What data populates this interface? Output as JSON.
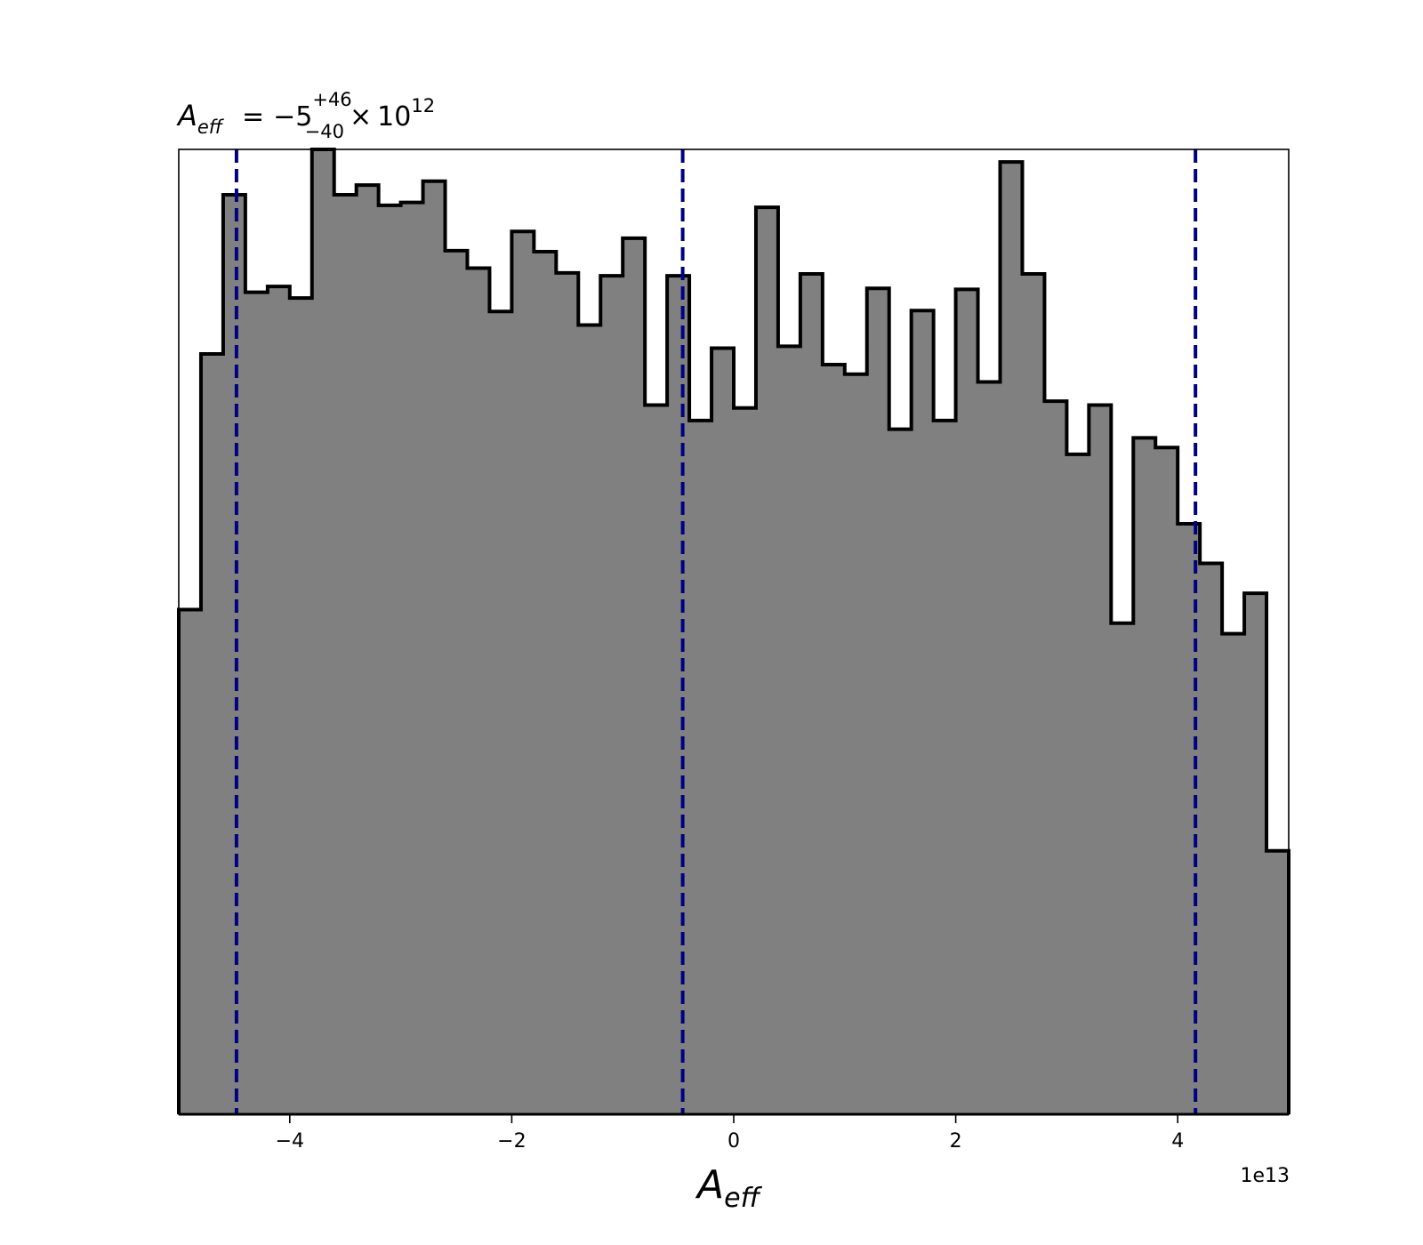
{
  "chart_data": {
    "type": "bar",
    "histogram": true,
    "title": {
      "symbol": "A",
      "symbol_subscript": "eff",
      "equals": "=",
      "value": "−5",
      "upper": "+46",
      "lower": "−40",
      "times": "×",
      "base": "10",
      "exponent": "12"
    },
    "xlabel": {
      "symbol": "A",
      "subscript": "eff"
    },
    "x_offset_text": "1e13",
    "xlim": [
      -5.0,
      5.0
    ],
    "ylim": [
      0,
      1000
    ],
    "xticks": [
      -4,
      -2,
      0,
      2,
      4
    ],
    "xtick_labels": [
      "−4",
      "−2",
      "0",
      "2",
      "4"
    ],
    "yaxis_visible": false,
    "bin_edges": [
      -5.0,
      -4.8,
      -4.6,
      -4.4,
      -4.2,
      -4.0,
      -3.8,
      -3.6,
      -3.4,
      -3.2,
      -3.0,
      -2.8,
      -2.6,
      -2.4,
      -2.2,
      -2.0,
      -1.8,
      -1.6,
      -1.4,
      -1.2,
      -1.0,
      -0.8,
      -0.6,
      -0.4,
      -0.2,
      0.0,
      0.2,
      0.4,
      0.6,
      0.8,
      1.0,
      1.2,
      1.4,
      1.6,
      1.8,
      2.0,
      2.2,
      2.4,
      2.6,
      2.8,
      3.0,
      3.2,
      3.4,
      3.6,
      3.8,
      4.0,
      4.2,
      4.4,
      4.6,
      4.8,
      5.0
    ],
    "values": [
      523,
      788,
      953,
      852,
      858,
      846,
      1000,
      953,
      963,
      942,
      945,
      967,
      895,
      877,
      832,
      915,
      894,
      872,
      818,
      869,
      908,
      735,
      869,
      719,
      794,
      732,
      940,
      796,
      871,
      777,
      767,
      856,
      710,
      833,
      719,
      855,
      759,
      987,
      871,
      739,
      684,
      735,
      509,
      701,
      691,
      612,
      571,
      498,
      540,
      273
    ],
    "fill_color": "#808080",
    "edge_color": "#000000",
    "vlines": [
      {
        "x": -4.48,
        "color": "#000080",
        "style": "dashed"
      },
      {
        "x": -0.46,
        "color": "#000080",
        "style": "dashed"
      },
      {
        "x": 4.16,
        "color": "#000080",
        "style": "dashed"
      }
    ]
  }
}
